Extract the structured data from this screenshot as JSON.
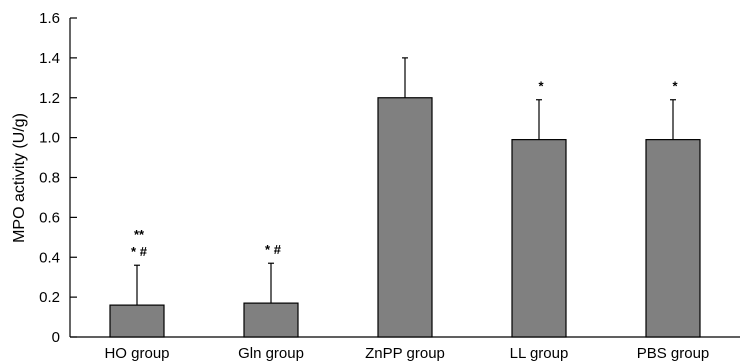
{
  "chart_data": {
    "type": "bar",
    "title": "",
    "xlabel": "",
    "ylabel": "MPO activity (U/g)",
    "ylim": [
      0,
      1.6
    ],
    "yticks": [
      "0",
      "0.2",
      "0.4",
      "0.6",
      "0.8",
      "1.0",
      "1.2",
      "1.4",
      "1.6"
    ],
    "categories": [
      "HO group",
      "Gln group",
      "ZnPP group",
      "LL group",
      "PBS group"
    ],
    "values": [
      0.16,
      0.17,
      1.2,
      0.99,
      0.99
    ],
    "errors": [
      0.2,
      0.2,
      0.2,
      0.2,
      0.2
    ],
    "annotations": [
      [
        "**",
        "* #"
      ],
      [
        "* #"
      ],
      [],
      [
        "*"
      ],
      [
        "*"
      ]
    ],
    "grid": false,
    "bar_color": "#808080",
    "edge_color": "#000000"
  }
}
